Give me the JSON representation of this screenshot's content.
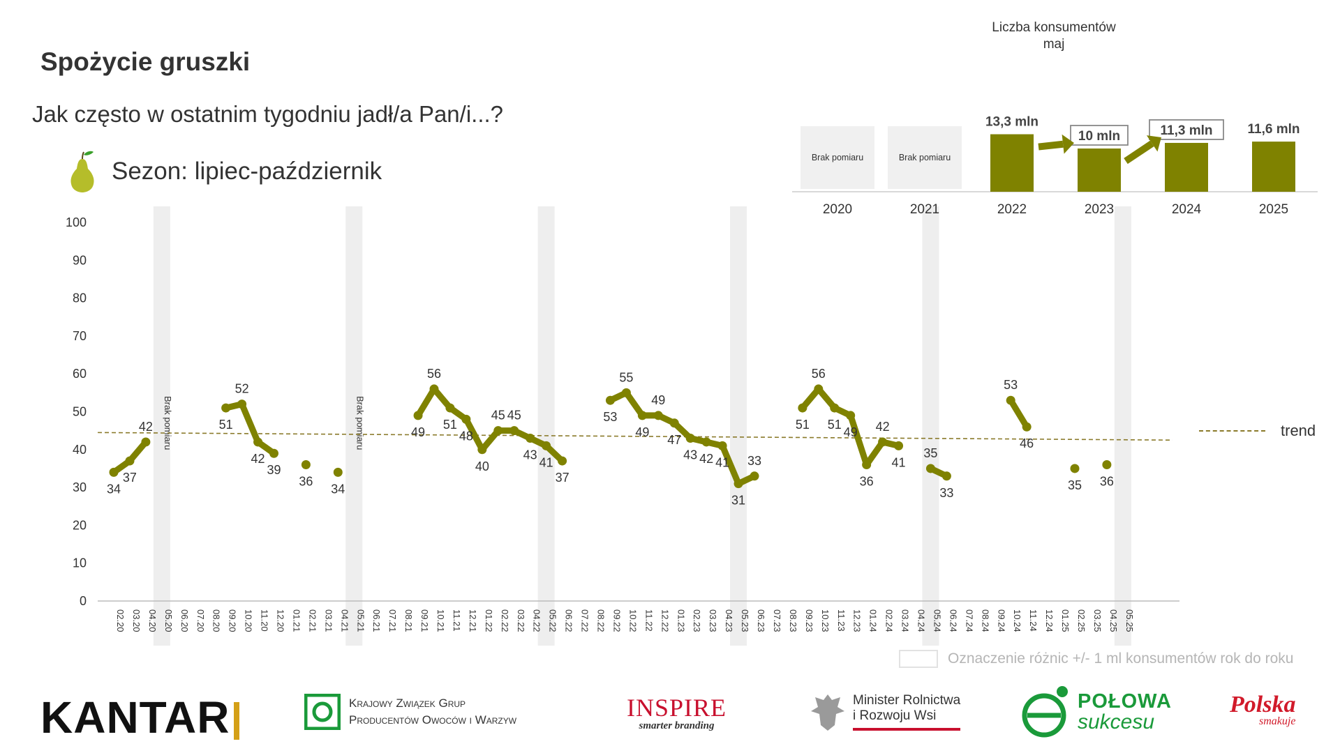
{
  "title": "Spożycie gruszki",
  "question": "Jak często w ostatnim tygodniu jadł/a Pan/i...?",
  "season": "Sezon: lipiec-październik",
  "colors": {
    "series": "#7f8200",
    "trend": "#8a7a2a",
    "band": "#eeeeee",
    "bar": "#7f8200"
  },
  "legend": {
    "trend": "trend",
    "band_note": "Oznaczenie różnic +/- 1 ml konsumentów rok do roku"
  },
  "chart_data": [
    {
      "type": "line",
      "categories": [
        "02.20",
        "03.20",
        "04.20",
        "05.20",
        "06.20",
        "07.20",
        "08.20",
        "09.20",
        "10.20",
        "11.20",
        "12.20",
        "01.21",
        "02.21",
        "03.21",
        "04.21",
        "05.21",
        "06.21",
        "07.21",
        "08.21",
        "09.21",
        "10.21",
        "11.21",
        "12.21",
        "01.22",
        "02.22",
        "03.22",
        "04.22",
        "05.22",
        "06.22",
        "07.22",
        "08.22",
        "09.22",
        "10.22",
        "11.22",
        "12.22",
        "01.23",
        "02.23",
        "03.23",
        "04.23",
        "05.23",
        "06.23",
        "07.23",
        "08.23",
        "09.23",
        "10.23",
        "11.23",
        "12.23",
        "01.24",
        "02.24",
        "03.24",
        "04.24",
        "05.24",
        "06.24",
        "07.24",
        "08.24",
        "09.24",
        "10.24",
        "11.24",
        "12.24",
        "01.25",
        "02.25",
        "03.25",
        "04.25",
        "05.25"
      ],
      "series": [
        {
          "values": [
            34,
            37,
            42,
            null,
            null,
            null,
            null,
            51,
            52,
            42,
            39,
            null,
            36,
            null,
            34,
            null,
            null,
            null,
            null,
            49,
            56,
            51,
            48,
            40,
            45,
            45,
            43,
            41,
            37,
            null,
            null,
            53,
            55,
            49,
            49,
            47,
            43,
            42,
            41,
            31,
            33,
            null,
            null,
            51,
            56,
            51,
            49,
            36,
            42,
            41,
            null,
            35,
            33,
            null,
            null,
            null,
            53,
            46,
            null,
            null,
            35,
            null,
            36,
            null
          ]
        }
      ],
      "no_measurement_label": "Brak pomiaru",
      "no_measurement_at": [
        "05.20",
        "05.21"
      ],
      "band_categories": [
        "05.20",
        "05.21",
        "05.22",
        "05.23",
        "05.24",
        "05.25"
      ],
      "trend": {
        "start": 44.5,
        "end": 42.5
      },
      "ylim": [
        0,
        100
      ],
      "yticks": [
        0,
        10,
        20,
        30,
        40,
        50,
        60,
        70,
        80,
        90,
        100
      ],
      "grid": false,
      "legend": "right"
    },
    {
      "type": "bar",
      "title": "Liczba konsumentów",
      "subtitle": "maj",
      "categories": [
        "2020",
        "2021",
        "2022",
        "2023",
        "2024",
        "2025"
      ],
      "values": [
        null,
        null,
        13.3,
        10,
        11.3,
        11.6
      ],
      "labels": [
        "Brak pomiaru",
        "Brak pomiaru",
        "13,3 mln",
        "10 mln",
        "11,3 mln",
        "11,6 mln"
      ],
      "boxed_labels": [
        "2023",
        "2024"
      ],
      "arrows": [
        [
          "2022",
          "2023"
        ],
        [
          "2023",
          "2024"
        ]
      ]
    }
  ]
}
